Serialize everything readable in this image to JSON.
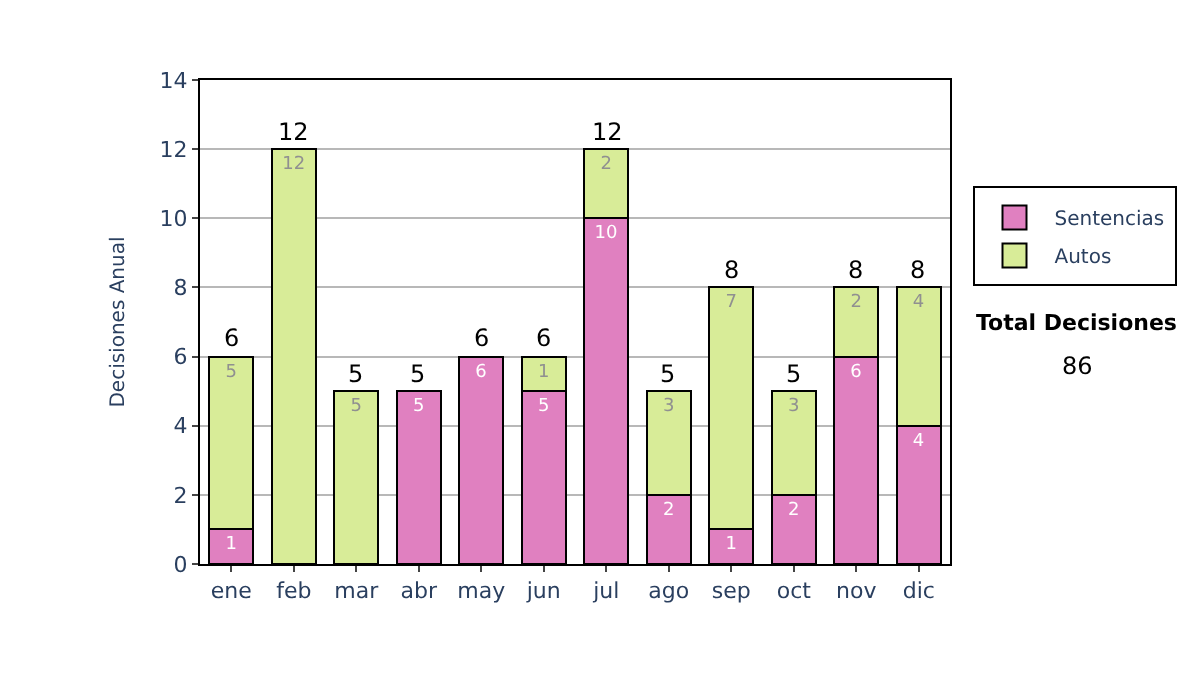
{
  "chart_data": {
    "type": "bar",
    "stacked": true,
    "ylabel": "Decisiones Anual",
    "categories": [
      "ene",
      "feb",
      "mar",
      "abr",
      "may",
      "jun",
      "jul",
      "ago",
      "sep",
      "oct",
      "nov",
      "dic"
    ],
    "series": [
      {
        "name": "Sentencias",
        "color": "#e080c0",
        "values": [
          1,
          0,
          0,
          5,
          6,
          5,
          10,
          2,
          1,
          2,
          6,
          4
        ],
        "value_labels": [
          "1",
          null,
          null,
          "5",
          "6",
          "5",
          "10",
          "2",
          "1",
          "2",
          "6",
          "4"
        ]
      },
      {
        "name": "Autos",
        "color": "#d8ec98",
        "values": [
          5,
          12,
          5,
          0,
          0,
          1,
          2,
          3,
          7,
          3,
          2,
          4
        ],
        "value_labels": [
          "5",
          "12",
          "5",
          null,
          null,
          "1",
          "2",
          "3",
          "7",
          "3",
          "2",
          "4"
        ]
      }
    ],
    "totals": [
      "6",
      "12",
      "5",
      "5",
      "6",
      "6",
      "12",
      "5",
      "8",
      "5",
      "8",
      "8"
    ],
    "ylim": [
      0,
      14
    ],
    "yticks": [
      0,
      2,
      4,
      6,
      8,
      10,
      12,
      14
    ],
    "grid": "y",
    "legend": "right",
    "annotations": [
      "Total Decisiones",
      "86"
    ]
  }
}
